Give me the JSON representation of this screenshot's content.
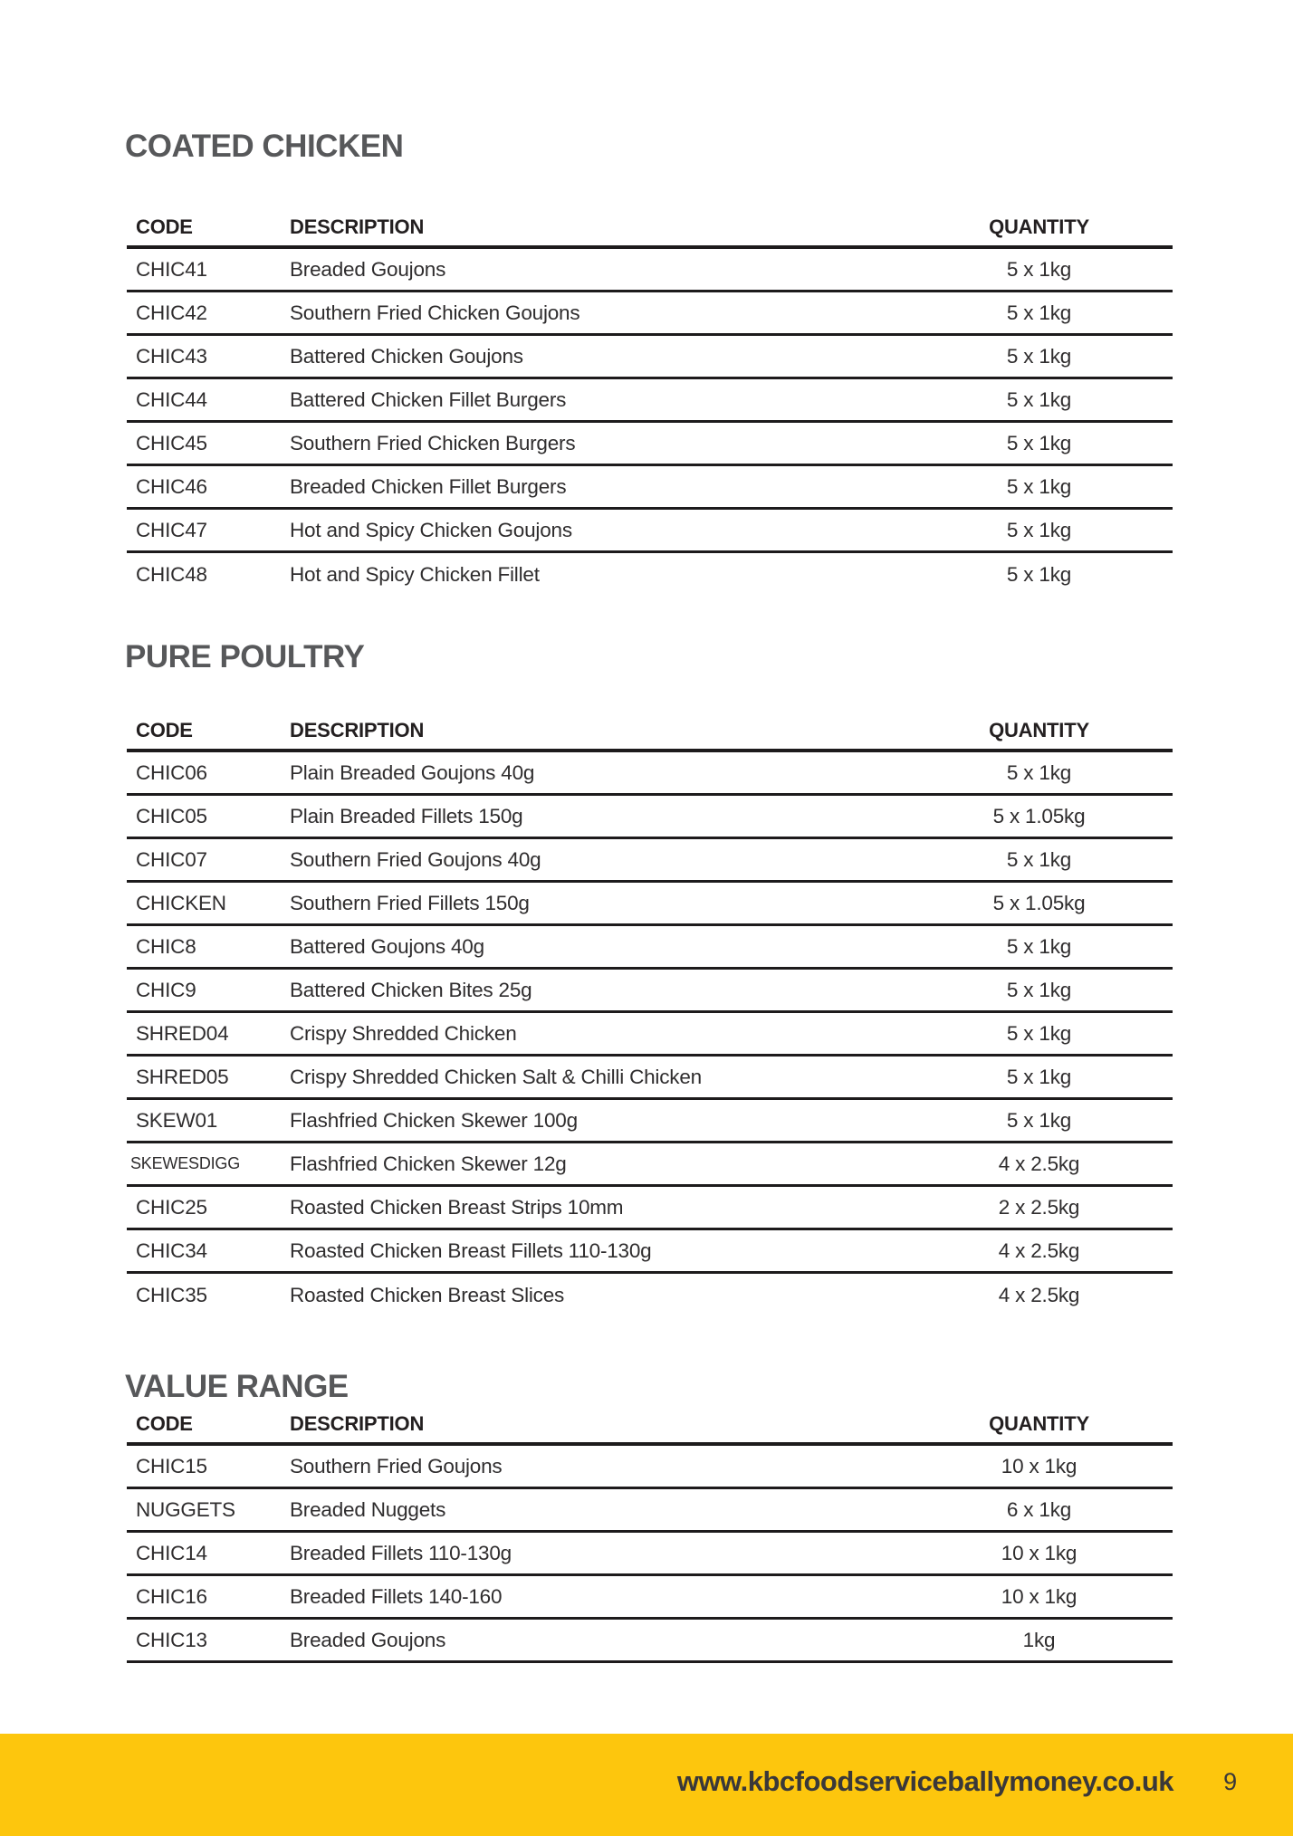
{
  "page": {
    "background_color": "#ffffff",
    "accent_yellow": "#fdc60d",
    "title_color": "#57585a",
    "text_color": "#2f2d2e"
  },
  "sections": [
    {
      "title": "COATED CHICKEN",
      "columns": {
        "code": "CODE",
        "description": "DESCRIPTION",
        "quantity": "QUANTITY"
      },
      "rows": [
        {
          "code": "CHIC41",
          "description": "Breaded Goujons",
          "quantity": "5 x 1kg"
        },
        {
          "code": "CHIC42",
          "description": "Southern Fried Chicken Goujons",
          "quantity": "5 x 1kg"
        },
        {
          "code": "CHIC43",
          "description": "Battered Chicken Goujons",
          "quantity": "5 x 1kg"
        },
        {
          "code": "CHIC44",
          "description": "Battered Chicken Fillet Burgers",
          "quantity": "5 x 1kg"
        },
        {
          "code": "CHIC45",
          "description": "Southern Fried Chicken Burgers",
          "quantity": "5 x 1kg"
        },
        {
          "code": "CHIC46",
          "description": "Breaded Chicken Fillet Burgers",
          "quantity": "5 x 1kg"
        },
        {
          "code": "CHIC47",
          "description": "Hot and Spicy Chicken Goujons",
          "quantity": "5 x 1kg"
        },
        {
          "code": "CHIC48",
          "description": "Hot and Spicy Chicken Fillet",
          "quantity": "5 x 1kg"
        }
      ]
    },
    {
      "title": "PURE POULTRY",
      "columns": {
        "code": "CODE",
        "description": "DESCRIPTION",
        "quantity": "QUANTITY"
      },
      "rows": [
        {
          "code": "CHIC06",
          "description": "Plain Breaded Goujons 40g",
          "quantity": "5 x 1kg"
        },
        {
          "code": "CHIC05",
          "description": "Plain Breaded Fillets 150g",
          "quantity": "5 x 1.05kg"
        },
        {
          "code": "CHIC07",
          "description": "Southern Fried Goujons 40g",
          "quantity": "5 x 1kg"
        },
        {
          "code": "CHICKEN",
          "description": "Southern Fried Fillets 150g",
          "quantity": "5 x 1.05kg"
        },
        {
          "code": "CHIC8",
          "description": "Battered Goujons 40g",
          "quantity": "5 x 1kg"
        },
        {
          "code": "CHIC9",
          "description": "Battered Chicken Bites 25g",
          "quantity": "5 x 1kg"
        },
        {
          "code": "SHRED04",
          "description": "Crispy Shredded Chicken",
          "quantity": "5 x 1kg"
        },
        {
          "code": "SHRED05",
          "description": "Crispy Shredded Chicken Salt & Chilli Chicken",
          "quantity": "5 x 1kg"
        },
        {
          "code": "SKEW01",
          "description": "Flashfried Chicken Skewer 100g",
          "quantity": "5 x 1kg"
        },
        {
          "code": "SKEWESDIGG",
          "description": "Flashfried Chicken Skewer 12g",
          "quantity": "4 x 2.5kg"
        },
        {
          "code": "CHIC25",
          "description": "Roasted Chicken Breast Strips 10mm",
          "quantity": "2 x 2.5kg"
        },
        {
          "code": "CHIC34",
          "description": "Roasted Chicken Breast Fillets 110-130g",
          "quantity": "4 x 2.5kg"
        },
        {
          "code": "CHIC35",
          "description": "Roasted Chicken Breast Slices",
          "quantity": "4 x 2.5kg"
        }
      ]
    },
    {
      "title": "VALUE RANGE",
      "columns": {
        "code": "CODE",
        "description": "DESCRIPTION",
        "quantity": "QUANTITY"
      },
      "rows": [
        {
          "code": "CHIC15",
          "description": "Southern Fried Goujons",
          "quantity": "10 x 1kg"
        },
        {
          "code": "NUGGETS",
          "description": "Breaded Nuggets",
          "quantity": "6 x 1kg"
        },
        {
          "code": "CHIC14",
          "description": "Breaded Fillets 110-130g",
          "quantity": "10 x 1kg"
        },
        {
          "code": "CHIC16",
          "description": "Breaded Fillets 140-160",
          "quantity": "10 x 1kg"
        },
        {
          "code": "CHIC13",
          "description": "Breaded Goujons",
          "quantity": "1kg"
        }
      ]
    }
  ],
  "footer": {
    "website": "www.kbcfoodserviceballymoney.co.uk",
    "page_number": "9"
  }
}
